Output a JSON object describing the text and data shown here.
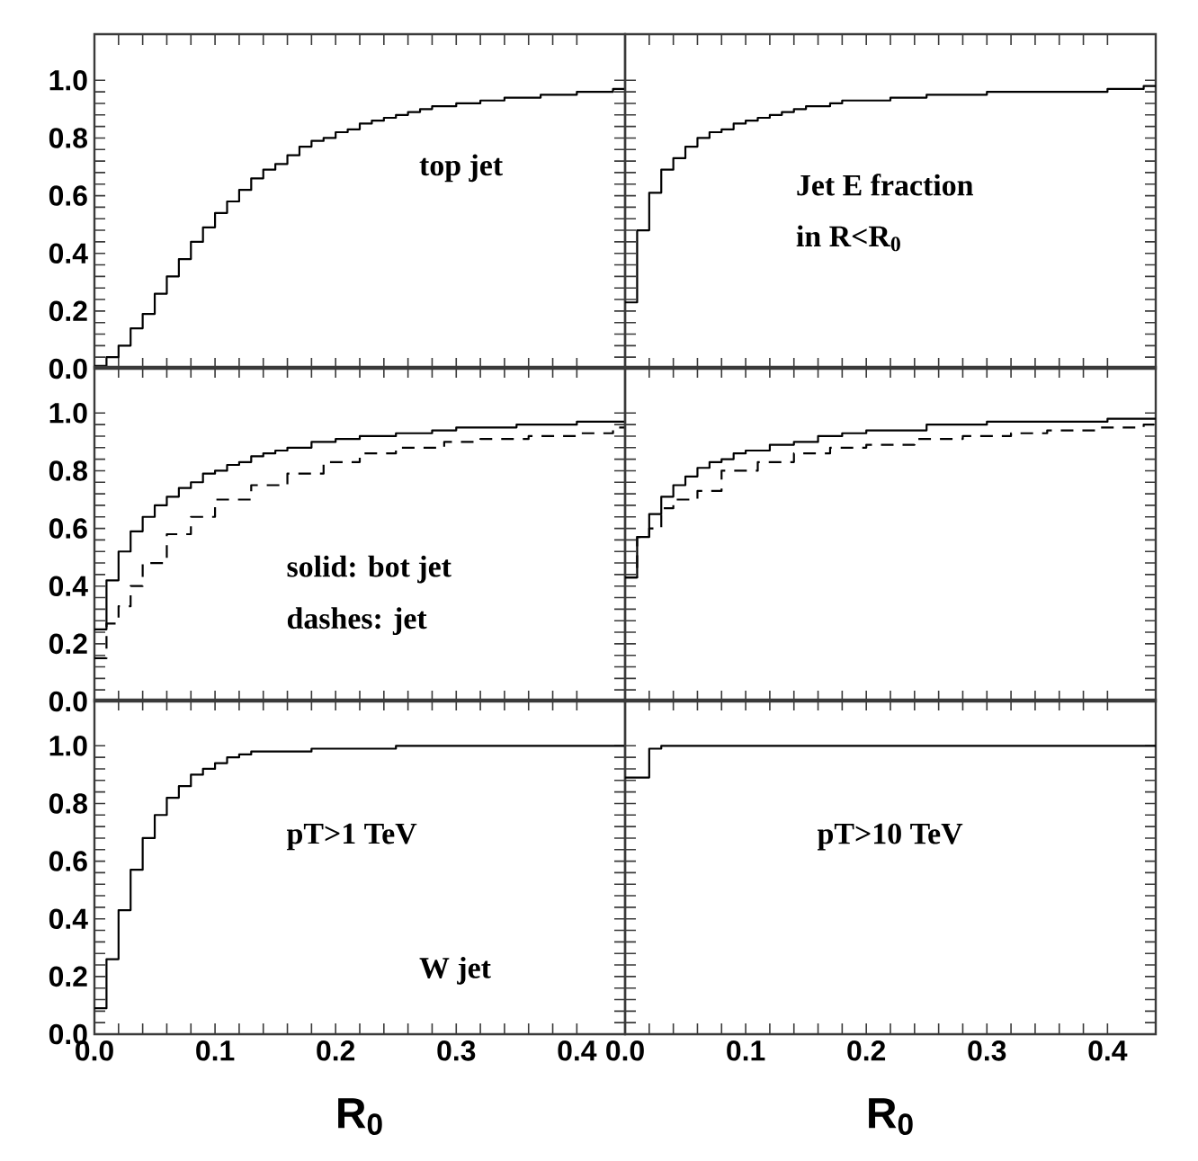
{
  "chart_data": [
    {
      "type": "step",
      "xlim": [
        0,
        0.44
      ],
      "ylim": [
        0,
        1.16
      ],
      "tick_labels": "y",
      "xticks": [
        {
          "value": 0,
          "label": null
        },
        {
          "value": 0.1,
          "label": null
        },
        {
          "value": 0.2,
          "label": null
        },
        {
          "value": 0.3,
          "label": null
        },
        {
          "value": 0.4,
          "label": null
        }
      ],
      "yticks": [
        {
          "value": 0,
          "label": "0.0"
        },
        {
          "value": 0.2,
          "label": "0.2"
        },
        {
          "value": 0.4,
          "label": "0.4"
        },
        {
          "value": 0.6,
          "label": "0.6"
        },
        {
          "value": 0.8,
          "label": "0.8"
        },
        {
          "value": 1.0,
          "label": "1.0"
        }
      ],
      "annotations": [
        "top jet"
      ],
      "series": [
        {
          "color": "#000000",
          "line_style": "solid",
          "x": [
            0,
            0.01,
            0.02,
            0.03,
            0.04,
            0.05,
            0.06,
            0.07,
            0.08,
            0.09,
            0.1,
            0.11,
            0.12,
            0.13,
            0.14,
            0.15,
            0.16,
            0.17,
            0.18,
            0.19,
            0.2,
            0.21,
            0.22,
            0.23,
            0.24,
            0.25,
            0.26,
            0.27,
            0.28,
            0.29,
            0.3,
            0.31,
            0.32,
            0.33,
            0.34,
            0.35,
            0.36,
            0.37,
            0.38,
            0.39,
            0.4,
            0.41,
            0.42,
            0.43,
            0.44
          ],
          "values": [
            0.01,
            0.04,
            0.08,
            0.14,
            0.19,
            0.26,
            0.32,
            0.38,
            0.44,
            0.49,
            0.54,
            0.58,
            0.62,
            0.66,
            0.69,
            0.71,
            0.74,
            0.77,
            0.79,
            0.8,
            0.82,
            0.83,
            0.85,
            0.86,
            0.87,
            0.88,
            0.89,
            0.9,
            0.91,
            0.91,
            0.92,
            0.92,
            0.93,
            0.93,
            0.94,
            0.94,
            0.94,
            0.95,
            0.95,
            0.95,
            0.96,
            0.96,
            0.96,
            0.97,
            0.97
          ]
        }
      ]
    },
    {
      "type": "step",
      "xlim": [
        0,
        0.44
      ],
      "ylim": [
        0,
        1.16
      ],
      "tick_labels": false,
      "xticks": [
        {
          "value": 0,
          "label": null
        },
        {
          "value": 0.1,
          "label": null
        },
        {
          "value": 0.2,
          "label": null
        },
        {
          "value": 0.3,
          "label": null
        },
        {
          "value": 0.4,
          "label": null
        }
      ],
      "yticks": [
        {
          "value": 0,
          "label": null
        },
        {
          "value": 0.2,
          "label": null
        },
        {
          "value": 0.4,
          "label": null
        },
        {
          "value": 0.6,
          "label": null
        },
        {
          "value": 0.8,
          "label": null
        },
        {
          "value": 1.0,
          "label": null
        }
      ],
      "annotations": [
        "Jet E fraction",
        "in R<R$_{0}$"
      ],
      "series": [
        {
          "color": "#000000",
          "line_style": "solid",
          "x": [
            0,
            0.01,
            0.02,
            0.03,
            0.04,
            0.05,
            0.06,
            0.07,
            0.08,
            0.09,
            0.1,
            0.11,
            0.12,
            0.13,
            0.14,
            0.15,
            0.16,
            0.17,
            0.18,
            0.19,
            0.2,
            0.22,
            0.25,
            0.28,
            0.3,
            0.35,
            0.4,
            0.43,
            0.44
          ],
          "values": [
            0.23,
            0.48,
            0.61,
            0.69,
            0.73,
            0.77,
            0.8,
            0.82,
            0.83,
            0.85,
            0.86,
            0.87,
            0.88,
            0.89,
            0.9,
            0.91,
            0.91,
            0.92,
            0.93,
            0.93,
            0.93,
            0.94,
            0.95,
            0.95,
            0.96,
            0.96,
            0.97,
            0.98,
            0.98
          ]
        }
      ]
    },
    {
      "type": "step",
      "xlim": [
        0,
        0.44
      ],
      "ylim": [
        0,
        1.16
      ],
      "tick_labels": "y",
      "xticks": [
        {
          "value": 0,
          "label": null
        },
        {
          "value": 0.1,
          "label": null
        },
        {
          "value": 0.2,
          "label": null
        },
        {
          "value": 0.3,
          "label": null
        },
        {
          "value": 0.4,
          "label": null
        }
      ],
      "yticks": [
        {
          "value": 0,
          "label": "0.0"
        },
        {
          "value": 0.2,
          "label": "0.2"
        },
        {
          "value": 0.4,
          "label": "0.4"
        },
        {
          "value": 0.6,
          "label": "0.6"
        },
        {
          "value": 0.8,
          "label": "0.8"
        },
        {
          "value": 1.0,
          "label": "1.0"
        }
      ],
      "annotations": [
        "solid: bot jet",
        "dashes: jet"
      ],
      "series": [
        {
          "color": "#000000",
          "line_style": "solid",
          "x": [
            0,
            0.01,
            0.02,
            0.03,
            0.04,
            0.05,
            0.06,
            0.07,
            0.08,
            0.09,
            0.1,
            0.11,
            0.12,
            0.13,
            0.14,
            0.15,
            0.16,
            0.18,
            0.2,
            0.22,
            0.25,
            0.28,
            0.3,
            0.35,
            0.4,
            0.44
          ],
          "values": [
            0.25,
            0.42,
            0.52,
            0.59,
            0.64,
            0.68,
            0.71,
            0.74,
            0.76,
            0.79,
            0.8,
            0.82,
            0.83,
            0.85,
            0.86,
            0.87,
            0.88,
            0.9,
            0.91,
            0.92,
            0.93,
            0.94,
            0.95,
            0.96,
            0.97,
            0.97
          ]
        },
        {
          "color": "#000000",
          "line_style": "dashed",
          "x": [
            0,
            0.01,
            0.02,
            0.03,
            0.04,
            0.06,
            0.08,
            0.1,
            0.13,
            0.16,
            0.19,
            0.22,
            0.25,
            0.29,
            0.32,
            0.36,
            0.4,
            0.43,
            0.44
          ],
          "values": [
            0.15,
            0.27,
            0.33,
            0.4,
            0.48,
            0.58,
            0.64,
            0.7,
            0.75,
            0.79,
            0.83,
            0.86,
            0.88,
            0.9,
            0.91,
            0.92,
            0.93,
            0.95,
            0.95
          ]
        }
      ]
    },
    {
      "type": "step",
      "xlim": [
        0,
        0.44
      ],
      "ylim": [
        0,
        1.16
      ],
      "tick_labels": false,
      "xticks": [
        {
          "value": 0,
          "label": null
        },
        {
          "value": 0.1,
          "label": null
        },
        {
          "value": 0.2,
          "label": null
        },
        {
          "value": 0.3,
          "label": null
        },
        {
          "value": 0.4,
          "label": null
        }
      ],
      "yticks": [
        {
          "value": 0,
          "label": null
        },
        {
          "value": 0.2,
          "label": null
        },
        {
          "value": 0.4,
          "label": null
        },
        {
          "value": 0.6,
          "label": null
        },
        {
          "value": 0.8,
          "label": null
        },
        {
          "value": 1.0,
          "label": null
        }
      ],
      "series": [
        {
          "color": "#000000",
          "line_style": "solid",
          "x": [
            0,
            0.01,
            0.02,
            0.03,
            0.04,
            0.05,
            0.06,
            0.07,
            0.08,
            0.09,
            0.1,
            0.12,
            0.14,
            0.16,
            0.18,
            0.2,
            0.25,
            0.3,
            0.35,
            0.4,
            0.44
          ],
          "values": [
            0.43,
            0.57,
            0.65,
            0.71,
            0.75,
            0.78,
            0.81,
            0.83,
            0.84,
            0.86,
            0.87,
            0.89,
            0.9,
            0.92,
            0.93,
            0.94,
            0.96,
            0.97,
            0.97,
            0.98,
            0.98
          ]
        },
        {
          "color": "#000000",
          "line_style": "dashed",
          "x": [
            0,
            0.01,
            0.02,
            0.03,
            0.04,
            0.06,
            0.08,
            0.11,
            0.14,
            0.17,
            0.2,
            0.24,
            0.28,
            0.32,
            0.35,
            0.39,
            0.43,
            0.44
          ],
          "values": [
            0.43,
            0.57,
            0.6,
            0.67,
            0.7,
            0.73,
            0.8,
            0.83,
            0.86,
            0.88,
            0.89,
            0.91,
            0.92,
            0.93,
            0.94,
            0.95,
            0.96,
            0.96
          ]
        }
      ]
    },
    {
      "type": "step",
      "xlim": [
        0,
        0.44
      ],
      "ylim": [
        0,
        1.16
      ],
      "xlabel": "R$_{0}$",
      "xticks": [
        {
          "value": 0,
          "label": "0.0"
        },
        {
          "value": 0.1,
          "label": "0.1"
        },
        {
          "value": 0.2,
          "label": "0.2"
        },
        {
          "value": 0.3,
          "label": "0.3"
        },
        {
          "value": 0.4,
          "label": "0.4"
        }
      ],
      "yticks": [
        {
          "value": 0,
          "label": "0.0"
        },
        {
          "value": 0.2,
          "label": "0.2"
        },
        {
          "value": 0.4,
          "label": "0.4"
        },
        {
          "value": 0.6,
          "label": "0.6"
        },
        {
          "value": 0.8,
          "label": "0.8"
        },
        {
          "value": 1.0,
          "label": "1.0"
        }
      ],
      "annotations": [
        "pT>1 TeV",
        "W jet"
      ],
      "series": [
        {
          "color": "#000000",
          "line_style": "solid",
          "x": [
            0,
            0.01,
            0.02,
            0.03,
            0.04,
            0.05,
            0.06,
            0.07,
            0.08,
            0.09,
            0.1,
            0.11,
            0.12,
            0.13,
            0.15,
            0.18,
            0.2,
            0.25,
            0.3,
            0.44
          ],
          "values": [
            0.09,
            0.26,
            0.43,
            0.57,
            0.68,
            0.76,
            0.82,
            0.86,
            0.9,
            0.92,
            0.94,
            0.96,
            0.97,
            0.98,
            0.98,
            0.99,
            0.99,
            1.0,
            1.0,
            1.0
          ]
        }
      ]
    },
    {
      "type": "step",
      "xlim": [
        0,
        0.44
      ],
      "ylim": [
        0,
        1.16
      ],
      "xlabel": "R$_{0}$",
      "tick_labels": "x",
      "xticks": [
        {
          "value": 0,
          "label": "0.0"
        },
        {
          "value": 0.1,
          "label": "0.1"
        },
        {
          "value": 0.2,
          "label": "0.2"
        },
        {
          "value": 0.3,
          "label": "0.3"
        },
        {
          "value": 0.4,
          "label": "0.4"
        }
      ],
      "yticks": [
        {
          "value": 0,
          "label": null
        },
        {
          "value": 0.2,
          "label": null
        },
        {
          "value": 0.4,
          "label": null
        },
        {
          "value": 0.6,
          "label": null
        },
        {
          "value": 0.8,
          "label": null
        },
        {
          "value": 1.0,
          "label": null
        }
      ],
      "annotations": [
        "pT>10 TeV"
      ],
      "series": [
        {
          "color": "#000000",
          "line_style": "solid",
          "x": [
            0,
            0.02,
            0.03,
            0.44
          ],
          "values": [
            0.89,
            0.99,
            1.0,
            1.0
          ]
        }
      ]
    }
  ]
}
